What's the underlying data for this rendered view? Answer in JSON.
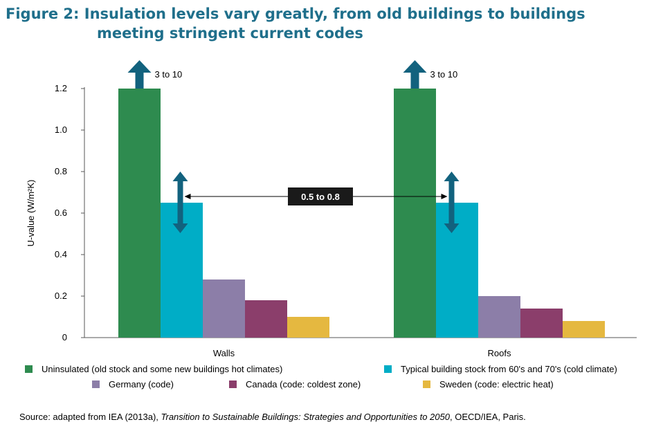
{
  "title_line1": "Figure 2: Insulation levels vary greatly, from old buildings to buildings",
  "title_line2": "meeting stringent current codes",
  "chart_data": {
    "type": "bar",
    "categories": [
      "Walls",
      "Roofs"
    ],
    "series": [
      {
        "name": "Uninsulated (old stock and some new buildings hot climates)",
        "color": "#2e8b4f",
        "values": [
          1.2,
          1.2
        ]
      },
      {
        "name": "Typical building stock from 60's and 70's (cold climate)",
        "color": "#00adc6",
        "values": [
          0.65,
          0.65
        ]
      },
      {
        "name": "Germany (code)",
        "color": "#8c7ea8",
        "values": [
          0.28,
          0.2
        ]
      },
      {
        "name": "Canada (code: coldest zone)",
        "color": "#8b3e6b",
        "values": [
          0.18,
          0.14
        ]
      },
      {
        "name": "Sweden (code: electric heat)",
        "color": "#e5b840",
        "values": [
          0.1,
          0.08
        ]
      }
    ],
    "ylabel": "U-value (W/m²K)",
    "ylim": [
      0,
      1.2
    ],
    "yticks": [
      "0",
      "0.2",
      "0.4",
      "0.6",
      "0.8",
      "1.0",
      "1.2"
    ],
    "annotations": {
      "uninsulated_range": "3 to 10",
      "typical_range": "0.5 to 0.8"
    },
    "arrow_color": "#12627e",
    "grid": false,
    "legend_position": "bottom"
  },
  "source": {
    "prefix": "Source: adapted from IEA (2013a), ",
    "italic": "Transition to Sustainable Buildings: Strategies and Opportunities to 2050",
    "suffix": ", OECD/IEA, Paris."
  }
}
